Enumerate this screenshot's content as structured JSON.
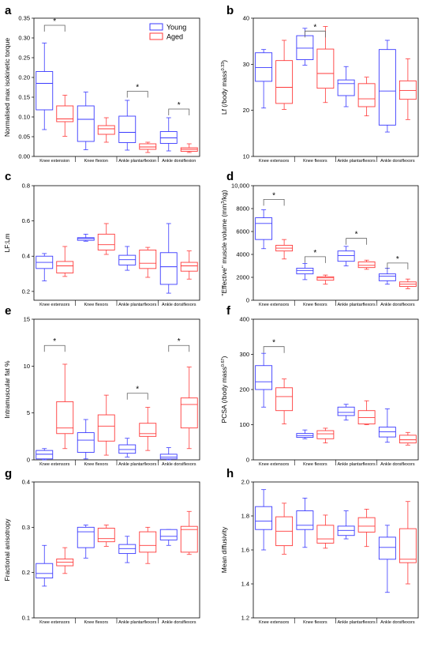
{
  "legend": {
    "placement": "top-right of panel a",
    "entries": [
      "Young",
      "Aged"
    ]
  },
  "colors": {
    "young": "#3a3aff",
    "aged": "#ff3a3a",
    "axis": "#000000",
    "sig": "#606060"
  },
  "chart_data": [
    {
      "type": "box",
      "panel": "a",
      "ylabel": "Normalised max isokinetic torque",
      "ylim": [
        0,
        0.35
      ],
      "yticks": [
        0,
        0.05,
        0.1,
        0.15,
        0.2,
        0.25,
        0.3,
        0.35
      ],
      "ytick_labels": [
        "0.00",
        "0.05",
        "0.10",
        "0.15",
        "0.20",
        "0.25",
        "0.30",
        "0.35"
      ],
      "categories": [
        "Knee extension",
        "Knee flexion",
        "Ankle plantarflexion",
        "Ankle dorsiflexion"
      ],
      "series": [
        {
          "name": "Young",
          "boxes": [
            {
              "min": 0.068,
              "q1": 0.118,
              "median": 0.185,
              "q3": 0.215,
              "max": 0.287
            },
            {
              "min": 0.017,
              "q1": 0.038,
              "median": 0.094,
              "q3": 0.128,
              "max": 0.163
            },
            {
              "min": 0.016,
              "q1": 0.035,
              "median": 0.061,
              "q3": 0.102,
              "max": 0.142
            },
            {
              "min": 0.014,
              "q1": 0.033,
              "median": 0.047,
              "q3": 0.063,
              "max": 0.098
            }
          ]
        },
        {
          "name": "Aged",
          "boxes": [
            {
              "min": 0.051,
              "q1": 0.088,
              "median": 0.095,
              "q3": 0.128,
              "max": 0.155
            },
            {
              "min": 0.036,
              "q1": 0.056,
              "median": 0.07,
              "q3": 0.078,
              "max": 0.098
            },
            {
              "min": 0.01,
              "q1": 0.018,
              "median": 0.024,
              "q3": 0.032,
              "max": 0.036
            },
            {
              "min": 0.01,
              "q1": 0.013,
              "median": 0.018,
              "q3": 0.022,
              "max": 0.032
            }
          ]
        }
      ],
      "significance": [
        {
          "category": 0,
          "y": 0.332,
          "label": "*"
        },
        {
          "category": 2,
          "y": 0.165,
          "label": "*"
        },
        {
          "category": 3,
          "y": 0.12,
          "label": "*"
        }
      ]
    },
    {
      "type": "box",
      "panel": "b",
      "ylabel": "Lf (/body mass",
      "ylabel_sup": "0.33",
      "ylabel_end": ")",
      "ylim": [
        10,
        40
      ],
      "yticks": [
        10,
        20,
        30,
        40
      ],
      "ytick_labels": [
        "10",
        "20",
        "30",
        "40"
      ],
      "categories": [
        "Knee extensors",
        "Knee flexors",
        "Ankle plantarflexors",
        "Ankle dorsiflexors"
      ],
      "series": [
        {
          "name": "Young",
          "boxes": [
            {
              "min": 20.5,
              "q1": 26.3,
              "median": 29.3,
              "q3": 32.5,
              "max": 33.2
            },
            {
              "min": 29.8,
              "q1": 31.0,
              "median": 33.5,
              "q3": 36.2,
              "max": 37.8
            },
            {
              "min": 20.8,
              "q1": 23.2,
              "median": 25.8,
              "q3": 26.6,
              "max": 29.5
            },
            {
              "min": 15.3,
              "q1": 16.8,
              "median": 24.2,
              "q3": 33.2,
              "max": 35.2
            }
          ]
        },
        {
          "name": "Aged",
          "boxes": [
            {
              "min": 20.2,
              "q1": 21.5,
              "median": 25.0,
              "q3": 30.8,
              "max": 35.2
            },
            {
              "min": 21.7,
              "q1": 24.8,
              "median": 28.0,
              "q3": 33.3,
              "max": 38.2
            },
            {
              "min": 18.8,
              "q1": 20.8,
              "median": 22.5,
              "q3": 25.8,
              "max": 27.2
            },
            {
              "min": 18.0,
              "q1": 22.4,
              "median": 24.3,
              "q3": 26.4,
              "max": 31.2
            }
          ]
        }
      ],
      "significance": [
        {
          "category": 1,
          "y": 37.2,
          "label": "*"
        }
      ]
    },
    {
      "type": "box",
      "panel": "c",
      "ylabel": "LF:Lm",
      "ylim": [
        0.15,
        0.8
      ],
      "yticks": [
        0.2,
        0.4,
        0.6,
        0.8
      ],
      "ytick_labels": [
        "0.2",
        "0.4",
        "0.6",
        "0.8"
      ],
      "categories": [
        "Knee extensors",
        "Knee flexors",
        "Ankle plantarflexors",
        "Ankle dorsiflexors"
      ],
      "series": [
        {
          "name": "Young",
          "boxes": [
            {
              "min": 0.26,
              "q1": 0.33,
              "median": 0.365,
              "q3": 0.4,
              "max": 0.415
            },
            {
              "min": 0.485,
              "q1": 0.49,
              "median": 0.5,
              "q3": 0.505,
              "max": 0.525
            },
            {
              "min": 0.32,
              "q1": 0.35,
              "median": 0.38,
              "q3": 0.405,
              "max": 0.455
            },
            {
              "min": 0.19,
              "q1": 0.24,
              "median": 0.34,
              "q3": 0.42,
              "max": 0.585
            }
          ]
        },
        {
          "name": "Aged",
          "boxes": [
            {
              "min": 0.285,
              "q1": 0.305,
              "median": 0.345,
              "q3": 0.37,
              "max": 0.455
            },
            {
              "min": 0.41,
              "q1": 0.435,
              "median": 0.465,
              "q3": 0.525,
              "max": 0.585
            },
            {
              "min": 0.28,
              "q1": 0.33,
              "median": 0.36,
              "q3": 0.435,
              "max": 0.45
            },
            {
              "min": 0.27,
              "q1": 0.315,
              "median": 0.345,
              "q3": 0.365,
              "max": 0.43
            }
          ]
        }
      ],
      "significance": []
    },
    {
      "type": "box",
      "panel": "d",
      "ylabel": "\"Effective\" muscle volume (mm",
      "ylabel_sup": "3",
      "ylabel_end": "/kg)",
      "ylim": [
        0,
        10000
      ],
      "yticks": [
        0,
        2000,
        4000,
        6000,
        8000,
        10000
      ],
      "ytick_labels": [
        "0",
        "2000",
        "4000",
        "6000",
        "8000",
        "10,000"
      ],
      "categories": [
        "Knee extensors",
        "Knee flexors",
        "Ankle plantarflexors",
        "Ankle dorsiflexors"
      ],
      "series": [
        {
          "name": "Young",
          "boxes": [
            {
              "min": 4500,
              "q1": 5300,
              "median": 6700,
              "q3": 7200,
              "max": 7900
            },
            {
              "min": 1800,
              "q1": 2300,
              "median": 2600,
              "q3": 2800,
              "max": 3200
            },
            {
              "min": 3000,
              "q1": 3400,
              "median": 3900,
              "q3": 4300,
              "max": 4700
            },
            {
              "min": 1400,
              "q1": 1700,
              "median": 2100,
              "q3": 2300,
              "max": 2800
            }
          ]
        },
        {
          "name": "Aged",
          "boxes": [
            {
              "min": 3600,
              "q1": 4300,
              "median": 4550,
              "q3": 4800,
              "max": 5300
            },
            {
              "min": 1400,
              "q1": 1750,
              "median": 1950,
              "q3": 2050,
              "max": 2200
            },
            {
              "min": 2700,
              "q1": 2850,
              "median": 3050,
              "q3": 3350,
              "max": 3500
            },
            {
              "min": 1000,
              "q1": 1200,
              "median": 1400,
              "q3": 1600,
              "max": 1850
            }
          ]
        }
      ],
      "significance": [
        {
          "category": 0,
          "y": 8800,
          "label": "*"
        },
        {
          "category": 1,
          "y": 3800,
          "label": "*"
        },
        {
          "category": 2,
          "y": 5400,
          "label": "*"
        },
        {
          "category": 3,
          "y": 3250,
          "label": "*"
        }
      ]
    },
    {
      "type": "box",
      "panel": "e",
      "ylabel": "Intramuscular fat %",
      "ylim": [
        0,
        15
      ],
      "yticks": [
        0,
        5,
        10,
        15
      ],
      "ytick_labels": [
        "0",
        "5",
        "10",
        "15"
      ],
      "categories": [
        "Knee extensors",
        "Knee flexors",
        "Ankle plantarflexors",
        "Ankle dorsiflexors"
      ],
      "series": [
        {
          "name": "Young",
          "boxes": [
            {
              "min": 0.0,
              "q1": 0.1,
              "median": 0.6,
              "q3": 1.0,
              "max": 1.2
            },
            {
              "min": 0.1,
              "q1": 0.8,
              "median": 2.1,
              "q3": 2.9,
              "max": 4.3
            },
            {
              "min": 0.3,
              "q1": 0.7,
              "median": 1.1,
              "q3": 1.6,
              "max": 2.3
            },
            {
              "min": 0.0,
              "q1": 0.1,
              "median": 0.3,
              "q3": 0.6,
              "max": 1.3
            }
          ]
        },
        {
          "name": "Aged",
          "boxes": [
            {
              "min": 1.2,
              "q1": 2.8,
              "median": 3.4,
              "q3": 6.2,
              "max": 10.2
            },
            {
              "min": 0.5,
              "q1": 2.0,
              "median": 3.6,
              "q3": 4.8,
              "max": 6.9
            },
            {
              "min": 1.0,
              "q1": 2.5,
              "median": 2.8,
              "q3": 3.9,
              "max": 5.6
            },
            {
              "min": 1.2,
              "q1": 3.4,
              "median": 5.9,
              "q3": 6.6,
              "max": 9.9
            }
          ]
        }
      ],
      "significance": [
        {
          "category": 0,
          "y": 12.2,
          "label": "*"
        },
        {
          "category": 2,
          "y": 7.1,
          "label": "*"
        },
        {
          "category": 3,
          "y": 12.2,
          "label": "*"
        }
      ]
    },
    {
      "type": "box",
      "panel": "f",
      "ylabel": "PCSA (/body mass",
      "ylabel_sup": "0.67",
      "ylabel_end": ")",
      "ylim": [
        0,
        400
      ],
      "yticks": [
        0,
        100,
        200,
        300,
        400
      ],
      "ytick_labels": [
        "0",
        "100",
        "200",
        "300",
        "400"
      ],
      "categories": [
        "Knee extensors",
        "Knee flexors",
        "Ankle plantarflexors",
        "Ankle dorsiflexors"
      ],
      "series": [
        {
          "name": "Young",
          "boxes": [
            {
              "min": 150,
              "q1": 200,
              "median": 222,
              "q3": 268,
              "max": 303
            },
            {
              "min": 60,
              "q1": 64,
              "median": 69,
              "q3": 75,
              "max": 85
            },
            {
              "min": 113,
              "q1": 126,
              "median": 135,
              "q3": 150,
              "max": 158
            },
            {
              "min": 50,
              "q1": 65,
              "median": 80,
              "q3": 93,
              "max": 145
            }
          ]
        },
        {
          "name": "Aged",
          "boxes": [
            {
              "min": 102,
              "q1": 140,
              "median": 180,
              "q3": 205,
              "max": 230
            },
            {
              "min": 48,
              "q1": 60,
              "median": 74,
              "q3": 83,
              "max": 90
            },
            {
              "min": 100,
              "q1": 102,
              "median": 120,
              "q3": 140,
              "max": 168
            },
            {
              "min": 42,
              "q1": 48,
              "median": 57,
              "q3": 70,
              "max": 78
            }
          ]
        }
      ],
      "significance": [
        {
          "category": 0,
          "y": 322,
          "label": "*"
        }
      ]
    },
    {
      "type": "box",
      "panel": "g",
      "ylabel": "Fractional anisotropy",
      "ylim": [
        0.1,
        0.4
      ],
      "yticks": [
        0.1,
        0.2,
        0.3,
        0.4
      ],
      "ytick_labels": [
        "0.1",
        "0.2",
        "0.3",
        "0.4"
      ],
      "categories": [
        "Knee extensors",
        "Knee flexors",
        "Ankle plantarflexors",
        "Ankle dorsiflexors"
      ],
      "series": [
        {
          "name": "Young",
          "boxes": [
            {
              "min": 0.17,
              "q1": 0.188,
              "median": 0.198,
              "q3": 0.22,
              "max": 0.26
            },
            {
              "min": 0.232,
              "q1": 0.255,
              "median": 0.29,
              "q3": 0.3,
              "max": 0.305
            },
            {
              "min": 0.222,
              "q1": 0.242,
              "median": 0.253,
              "q3": 0.262,
              "max": 0.28
            },
            {
              "min": 0.26,
              "q1": 0.272,
              "median": 0.28,
              "q3": 0.295,
              "max": 0.295
            }
          ]
        },
        {
          "name": "Aged",
          "boxes": [
            {
              "min": 0.198,
              "q1": 0.215,
              "median": 0.223,
              "q3": 0.23,
              "max": 0.255
            },
            {
              "min": 0.258,
              "q1": 0.268,
              "median": 0.275,
              "q3": 0.298,
              "max": 0.305
            },
            {
              "min": 0.22,
              "q1": 0.245,
              "median": 0.26,
              "q3": 0.29,
              "max": 0.3
            },
            {
              "min": 0.24,
              "q1": 0.245,
              "median": 0.295,
              "q3": 0.302,
              "max": 0.335
            }
          ]
        }
      ],
      "significance": []
    },
    {
      "type": "box",
      "panel": "h",
      "ylabel": "Mean diffusivity",
      "ylim": [
        1.2,
        2.0
      ],
      "yticks": [
        1.2,
        1.4,
        1.6,
        1.8,
        2.0
      ],
      "ytick_labels": [
        "1.2",
        "1.4",
        "1.6",
        "1.8",
        "2.0"
      ],
      "categories": [
        "Knee extensors",
        "Knee flexors",
        "Ankle plantarflexors",
        "Ankle dorsiflexors"
      ],
      "series": [
        {
          "name": "Young",
          "boxes": [
            {
              "min": 1.6,
              "q1": 1.72,
              "median": 1.77,
              "q3": 1.855,
              "max": 1.955
            },
            {
              "min": 1.615,
              "q1": 1.72,
              "median": 1.745,
              "q3": 1.83,
              "max": 1.905
            },
            {
              "min": 1.665,
              "q1": 1.685,
              "median": 1.715,
              "q3": 1.74,
              "max": 1.83
            },
            {
              "min": 1.35,
              "q1": 1.545,
              "median": 1.615,
              "q3": 1.675,
              "max": 1.745
            }
          ]
        },
        {
          "name": "Aged",
          "boxes": [
            {
              "min": 1.575,
              "q1": 1.625,
              "median": 1.71,
              "q3": 1.795,
              "max": 1.875
            },
            {
              "min": 1.61,
              "q1": 1.64,
              "median": 1.665,
              "q3": 1.745,
              "max": 1.805
            },
            {
              "min": 1.62,
              "q1": 1.705,
              "median": 1.74,
              "q3": 1.79,
              "max": 1.84
            },
            {
              "min": 1.4,
              "q1": 1.525,
              "median": 1.545,
              "q3": 1.725,
              "max": 1.885
            }
          ]
        }
      ],
      "significance": []
    }
  ]
}
